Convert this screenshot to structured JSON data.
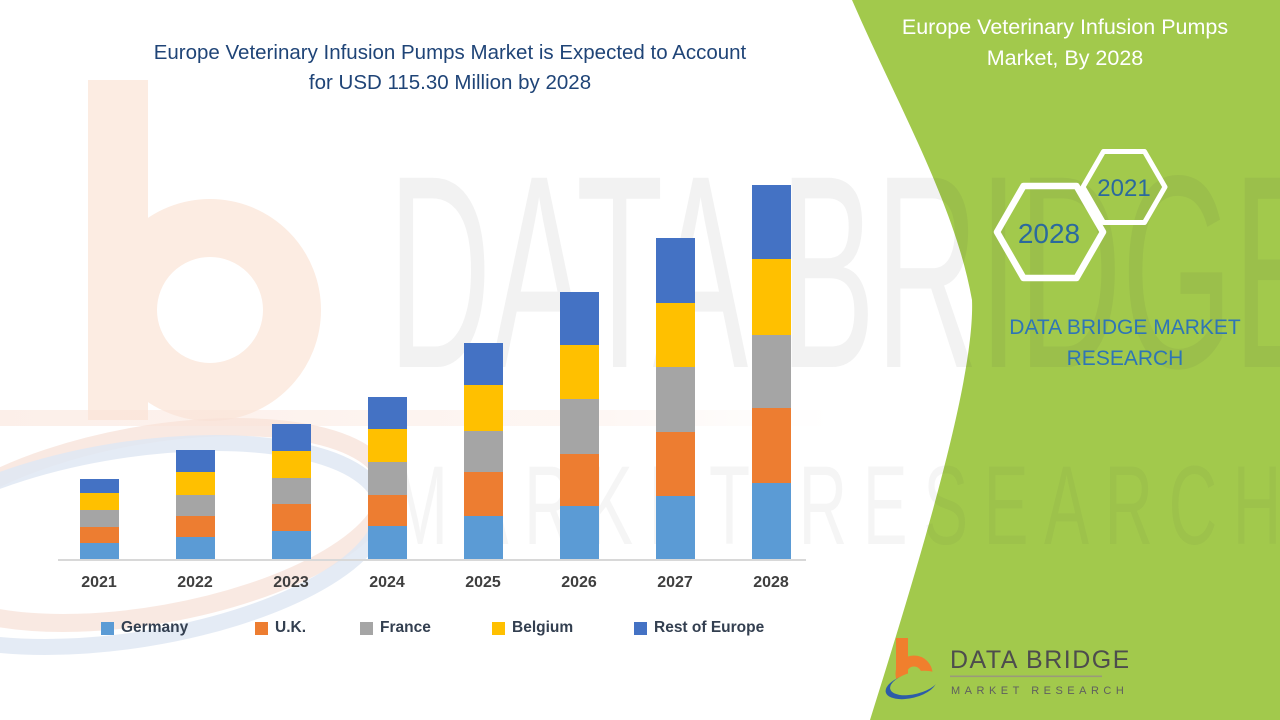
{
  "title": {
    "line1": "Europe Veterinary Infusion Pumps Market is Expected to Account",
    "line2": "for USD 115.30 Million by 2028"
  },
  "chart_data": {
    "type": "bar",
    "stacked": true,
    "title": "Europe Veterinary Infusion Pumps Market is Expected to Account for USD 115.30 Million by 2028",
    "unit": "USD Million",
    "categories": [
      "2021",
      "2022",
      "2023",
      "2024",
      "2025",
      "2026",
      "2027",
      "2028"
    ],
    "series": [
      {
        "name": "Germany",
        "color": "#5B9BD5",
        "values": [
          5.0,
          6.7,
          8.6,
          10.2,
          13.3,
          16.3,
          19.4,
          23.4
        ]
      },
      {
        "name": "U.K.",
        "color": "#ED7D31",
        "values": [
          4.9,
          6.7,
          8.2,
          9.5,
          13.6,
          16.1,
          19.9,
          23.1
        ]
      },
      {
        "name": "France",
        "color": "#A5A5A5",
        "values": [
          5.3,
          6.2,
          8.2,
          10.3,
          12.7,
          16.8,
          19.8,
          22.7
        ]
      },
      {
        "name": "Belgium",
        "color": "#FFC000",
        "values": [
          5.2,
          7.3,
          8.2,
          10.1,
          13.9,
          16.7,
          19.9,
          23.3
        ]
      },
      {
        "name": "Rest of Europe",
        "color": "#4472C4",
        "values": [
          4.3,
          6.6,
          8.4,
          9.8,
          13.1,
          16.5,
          19.9,
          22.8
        ]
      }
    ],
    "totals": [
      24.7,
      33.5,
      41.6,
      49.9,
      66.6,
      82.4,
      98.9,
      115.3
    ],
    "ylim": [
      0,
      120
    ],
    "grid": false,
    "legend_position": "bottom"
  },
  "side_panel": {
    "header_line1": "Europe Veterinary Infusion Pumps",
    "header_line2": "Market, By 2028",
    "hexagons": [
      {
        "label": "2021"
      },
      {
        "label": "2028"
      }
    ],
    "brand_name": "DATA BRIDGE MARKET RESEARCH",
    "background_color": "#A2C94C"
  },
  "footer_logo": {
    "name": "DATA BRIDGE",
    "tagline": "MARKET RESEARCH"
  },
  "watermark": {
    "line1": "DATA BRIDGE",
    "line2": "MARKET RESEARCH"
  },
  "colors": {
    "title_text": "#1F4477",
    "legend_text": "#333F50",
    "axis_label": "#3F3F3F",
    "panel_green": "#A2C94C",
    "hex_year_text": "#2B6A9D",
    "brand_text_blue": "#2E75B6",
    "logo_orange": "#F07F2D",
    "logo_blue": "#2D5CA8"
  }
}
